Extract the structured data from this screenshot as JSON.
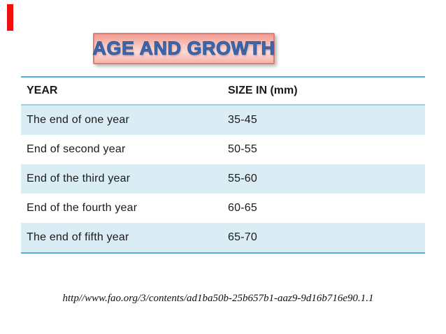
{
  "page": {
    "title": "AGE AND GROWTH",
    "source_url": "http//www.fao.org/3/contents/ad1ba50b-25b657b1-aaz9-9d16b716e90.1.1"
  },
  "colors": {
    "accent_bar": "#f30e0e",
    "title_text": "#3c68b2",
    "title_box_border": "#d97f76",
    "title_box_fill_top": "#f09a90",
    "title_box_fill_mid": "#fbdad5",
    "table_border_line": "#4fb0ce",
    "table_header_separator": "#9ad2e2",
    "banded_row_fill": "#daecf4"
  },
  "table": {
    "columns": [
      "YEAR",
      "SIZE IN (mm)"
    ],
    "rows": [
      {
        "year": "The end of one year",
        "size": "35-45"
      },
      {
        "year": "End of second year",
        "size": "50-55"
      },
      {
        "year": "End of the third year",
        "size": "55-60"
      },
      {
        "year": "End of the fourth year",
        "size": "60-65"
      },
      {
        "year": "The end of fifth year",
        "size": "65-70"
      }
    ]
  }
}
